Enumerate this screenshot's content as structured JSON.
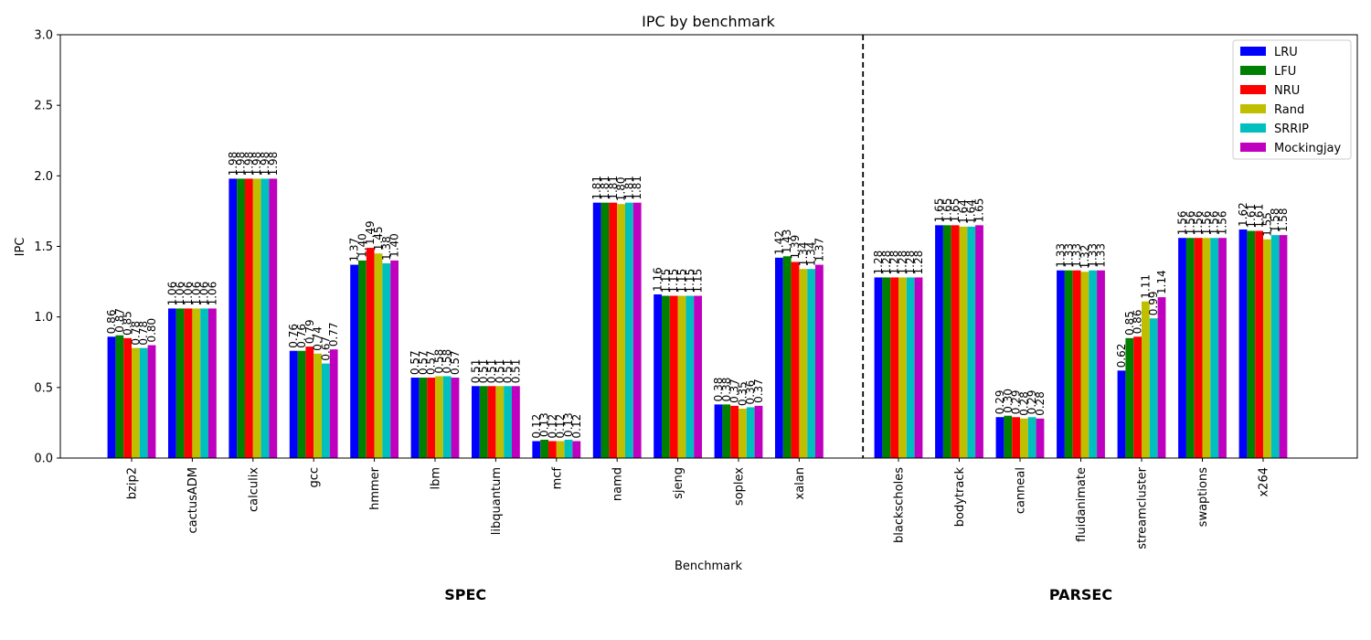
{
  "chart_data": {
    "type": "bar",
    "title": "IPC by benchmark",
    "xlabel": "Benchmark",
    "ylabel": "IPC",
    "ylim": [
      0,
      3.0
    ],
    "yticks": [
      "0.0",
      "0.5",
      "1.0",
      "1.5",
      "2.0",
      "2.5",
      "3.0"
    ],
    "grid": false,
    "legend_position": "top-right",
    "categories": [
      "bzip2",
      "cactusADM",
      "calculix",
      "gcc",
      "hmmer",
      "lbm",
      "libquantum",
      "mcf",
      "namd",
      "sjeng",
      "soplex",
      "xalan",
      "blackscholes",
      "bodytrack",
      "canneal",
      "fluidanimate",
      "streamcluster",
      "swaptions",
      "x264"
    ],
    "groups": [
      {
        "label": "SPEC",
        "count": 12
      },
      {
        "label": "PARSEC",
        "count": 7
      }
    ],
    "series": [
      {
        "name": "LRU",
        "color": "#0000ff",
        "values": [
          0.86,
          1.06,
          1.98,
          0.76,
          1.37,
          0.57,
          0.51,
          0.12,
          1.81,
          1.16,
          0.38,
          1.42,
          1.28,
          1.65,
          0.29,
          1.33,
          0.62,
          1.56,
          1.62
        ]
      },
      {
        "name": "LFU",
        "color": "#008000",
        "values": [
          0.87,
          1.06,
          1.98,
          0.76,
          1.4,
          0.57,
          0.51,
          0.13,
          1.81,
          1.15,
          0.38,
          1.43,
          1.28,
          1.65,
          0.3,
          1.33,
          0.85,
          1.56,
          1.61
        ]
      },
      {
        "name": "NRU",
        "color": "#ff0000",
        "values": [
          0.85,
          1.06,
          1.98,
          0.79,
          1.49,
          0.57,
          0.51,
          0.12,
          1.81,
          1.15,
          0.37,
          1.39,
          1.28,
          1.65,
          0.29,
          1.33,
          0.86,
          1.56,
          1.61
        ]
      },
      {
        "name": "Rand",
        "color": "#bfbf00",
        "values": [
          0.78,
          1.06,
          1.98,
          0.74,
          1.45,
          0.58,
          0.51,
          0.12,
          1.8,
          1.15,
          0.35,
          1.34,
          1.28,
          1.64,
          0.28,
          1.32,
          1.11,
          1.56,
          1.55
        ]
      },
      {
        "name": "SRRIP",
        "color": "#00bfbf",
        "values": [
          0.78,
          1.06,
          1.98,
          0.67,
          1.38,
          0.58,
          0.51,
          0.13,
          1.81,
          1.15,
          0.36,
          1.34,
          1.28,
          1.64,
          0.29,
          1.33,
          0.99,
          1.56,
          1.58
        ]
      },
      {
        "name": "Mockingjay",
        "color": "#bf00bf",
        "values": [
          0.8,
          1.06,
          1.98,
          0.77,
          1.4,
          0.57,
          0.51,
          0.12,
          1.81,
          1.15,
          0.37,
          1.37,
          1.28,
          1.65,
          0.28,
          1.33,
          1.14,
          1.56,
          1.58
        ]
      }
    ]
  }
}
